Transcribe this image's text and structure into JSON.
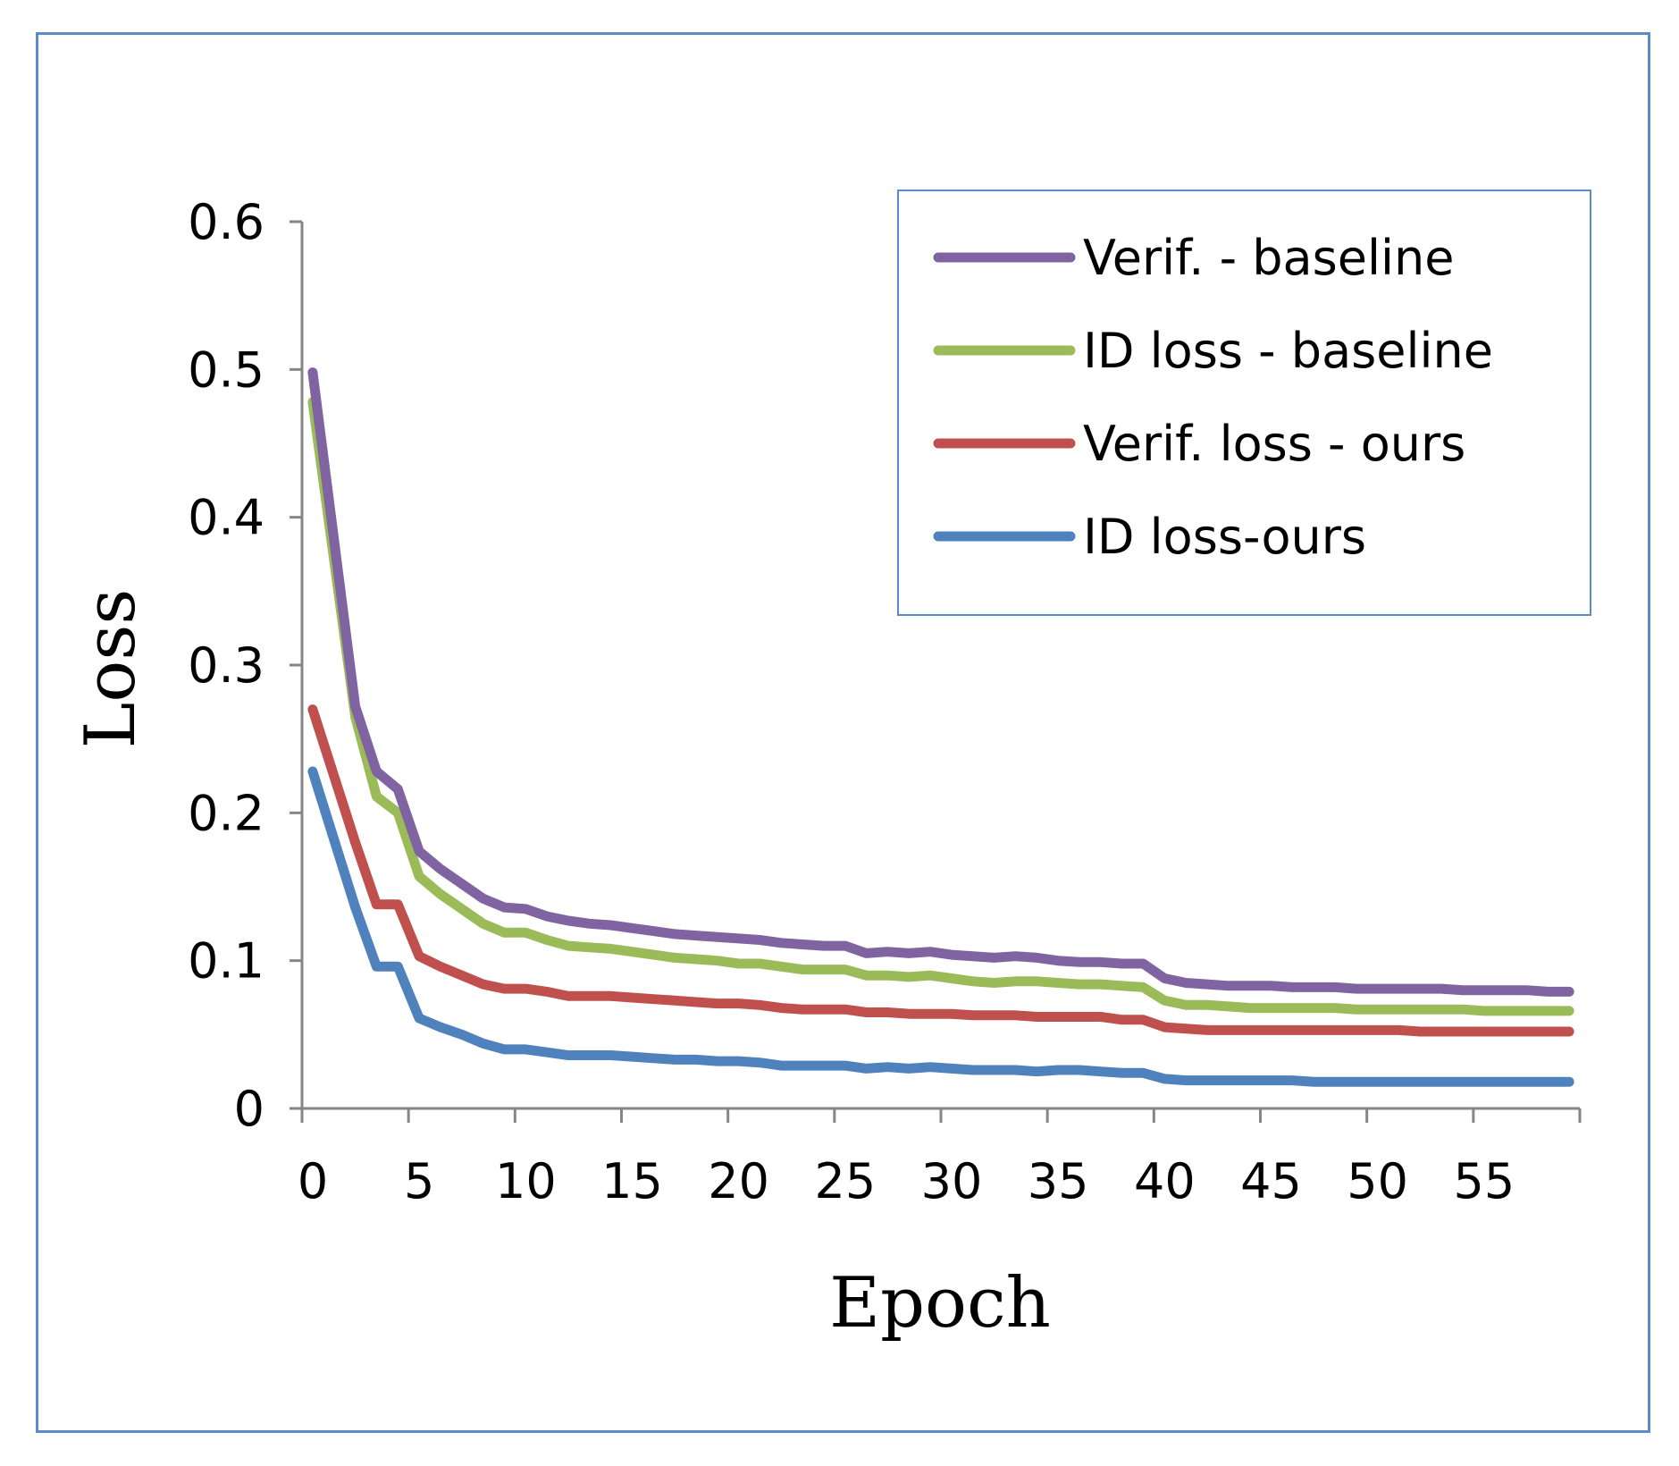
{
  "chart_data": {
    "type": "line",
    "title": "",
    "xlabel": "Epoch",
    "ylabel": "Loss",
    "xlim": [
      0,
      60
    ],
    "ylim": [
      0,
      0.6
    ],
    "xticks": [
      0,
      5,
      10,
      15,
      20,
      25,
      30,
      35,
      40,
      45,
      50,
      55
    ],
    "xtick_labels": [
      "0",
      "5",
      "10",
      "15",
      "20",
      "25",
      "30",
      "35",
      "40",
      "45",
      "50",
      "55"
    ],
    "yticks": [
      0,
      0.1,
      0.2,
      0.3,
      0.4,
      0.5,
      0.6
    ],
    "ytick_labels": [
      "0",
      "0.1",
      "0.2",
      "0.3",
      "0.4",
      "0.5",
      "0.6"
    ],
    "grid": false,
    "legend_position": "top-right",
    "x": [
      0.5,
      2.5,
      3.5,
      4.5,
      5.5,
      6.5,
      7.5,
      8.5,
      9.5,
      10.5,
      11.5,
      12.5,
      13.5,
      14.5,
      15.5,
      16.5,
      17.5,
      18.5,
      19.5,
      20.5,
      21.5,
      22.5,
      23.5,
      24.5,
      25.5,
      26.5,
      27.5,
      28.5,
      29.5,
      30.5,
      31.5,
      32.5,
      33.5,
      34.5,
      35.5,
      36.5,
      37.5,
      38.5,
      39.5,
      40.5,
      41.5,
      42.5,
      43.5,
      44.5,
      45.5,
      46.5,
      47.5,
      48.5,
      49.5,
      50.5,
      51.5,
      52.5,
      53.5,
      54.5,
      55.5,
      56.5,
      57.5,
      58.5,
      59.5
    ],
    "series": [
      {
        "name": "Verif. - baseline",
        "color": "#8064a2",
        "values": [
          0.498,
          0.272,
          0.228,
          0.216,
          0.174,
          0.162,
          0.152,
          0.142,
          0.136,
          0.135,
          0.13,
          0.127,
          0.125,
          0.124,
          0.122,
          0.12,
          0.118,
          0.117,
          0.116,
          0.115,
          0.114,
          0.112,
          0.111,
          0.11,
          0.11,
          0.105,
          0.106,
          0.105,
          0.106,
          0.104,
          0.103,
          0.102,
          0.103,
          0.102,
          0.1,
          0.099,
          0.099,
          0.098,
          0.098,
          0.088,
          0.085,
          0.084,
          0.083,
          0.083,
          0.083,
          0.082,
          0.082,
          0.082,
          0.081,
          0.081,
          0.081,
          0.081,
          0.081,
          0.08,
          0.08,
          0.08,
          0.08,
          0.079,
          0.079
        ]
      },
      {
        "name": "ID loss - baseline",
        "color": "#9bbb59",
        "values": [
          0.478,
          0.265,
          0.211,
          0.2,
          0.157,
          0.145,
          0.135,
          0.125,
          0.119,
          0.119,
          0.114,
          0.11,
          0.109,
          0.108,
          0.106,
          0.104,
          0.102,
          0.101,
          0.1,
          0.098,
          0.098,
          0.096,
          0.094,
          0.094,
          0.094,
          0.09,
          0.09,
          0.089,
          0.09,
          0.088,
          0.086,
          0.085,
          0.086,
          0.086,
          0.085,
          0.084,
          0.084,
          0.083,
          0.082,
          0.073,
          0.07,
          0.07,
          0.069,
          0.068,
          0.068,
          0.068,
          0.068,
          0.068,
          0.067,
          0.067,
          0.067,
          0.067,
          0.067,
          0.067,
          0.066,
          0.066,
          0.066,
          0.066,
          0.066
        ]
      },
      {
        "name": "Verif. loss - ours",
        "color": "#c0504d",
        "values": [
          0.27,
          0.18,
          0.138,
          0.138,
          0.103,
          0.096,
          0.09,
          0.084,
          0.081,
          0.081,
          0.079,
          0.076,
          0.076,
          0.076,
          0.075,
          0.074,
          0.073,
          0.072,
          0.071,
          0.071,
          0.07,
          0.068,
          0.067,
          0.067,
          0.067,
          0.065,
          0.065,
          0.064,
          0.064,
          0.064,
          0.063,
          0.063,
          0.063,
          0.062,
          0.062,
          0.062,
          0.062,
          0.06,
          0.06,
          0.055,
          0.054,
          0.053,
          0.053,
          0.053,
          0.053,
          0.053,
          0.053,
          0.053,
          0.053,
          0.053,
          0.053,
          0.052,
          0.052,
          0.052,
          0.052,
          0.052,
          0.052,
          0.052,
          0.052
        ]
      },
      {
        "name": "ID loss-ours",
        "color": "#4f81bd",
        "values": [
          0.228,
          0.136,
          0.096,
          0.096,
          0.061,
          0.055,
          0.05,
          0.044,
          0.04,
          0.04,
          0.038,
          0.036,
          0.036,
          0.036,
          0.035,
          0.034,
          0.033,
          0.033,
          0.032,
          0.032,
          0.031,
          0.029,
          0.029,
          0.029,
          0.029,
          0.027,
          0.028,
          0.027,
          0.028,
          0.027,
          0.026,
          0.026,
          0.026,
          0.025,
          0.026,
          0.026,
          0.025,
          0.024,
          0.024,
          0.02,
          0.019,
          0.019,
          0.019,
          0.019,
          0.019,
          0.019,
          0.018,
          0.018,
          0.018,
          0.018,
          0.018,
          0.018,
          0.018,
          0.018,
          0.018,
          0.018,
          0.018,
          0.018,
          0.018
        ]
      }
    ]
  }
}
